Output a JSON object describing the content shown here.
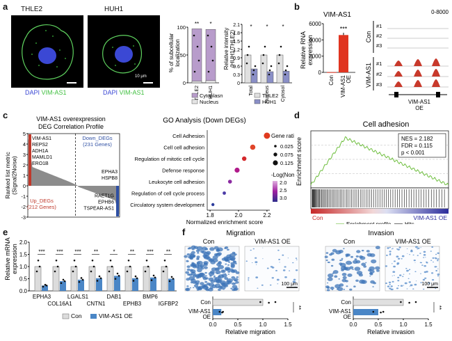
{
  "panels": {
    "a": "a",
    "b": "b",
    "c": "c",
    "d": "d",
    "e": "e",
    "f": "f"
  },
  "a": {
    "micro": {
      "thle2": "THLE2",
      "huh1": "HUH1",
      "scale_small": "10 μm",
      "dapi": "DAPI",
      "vim": "VIM-AS1"
    },
    "bar1": {
      "ylabel": "% of subcellular\nlocalization",
      "yticks": [
        "0",
        "50",
        "100"
      ],
      "groups": [
        "THLE2",
        "HUH1"
      ],
      "cytoplasm": [
        97,
        96
      ],
      "nucleus": [
        3,
        4
      ],
      "sig": [
        "**",
        "*"
      ],
      "legend": [
        "Cytoplasm",
        "Nucleus"
      ],
      "colors": {
        "cytoplasm": "#b89ccb",
        "nucleus": "#e4e4e4"
      }
    },
    "bar2": {
      "ylabel": "Relative intensity\n(HUH1/THLE2)",
      "yticks": [
        "0",
        "0.3",
        "0.6",
        "0.9",
        "1.2",
        "1.5",
        "1.8",
        "2.1"
      ],
      "categories": [
        "Total",
        "Nucleus",
        "Cytosol"
      ],
      "thle2": [
        1.0,
        1.0,
        1.0
      ],
      "huh1": [
        0.5,
        0.4,
        0.42
      ],
      "sig": [
        "*",
        "*",
        "*"
      ],
      "legend": [
        "THLE2",
        "HUH1"
      ],
      "colors": {
        "thle2": "#e0e0e0",
        "huh1": "#8a8fc7"
      }
    }
  },
  "b": {
    "title": "VIM-AS1",
    "ylabel": "Relative RNA\nexpression",
    "yticks": [
      "0",
      "2000",
      "4000",
      "6000"
    ],
    "categories": [
      "Con",
      "VIM-AS1\nOE"
    ],
    "values": [
      30,
      4600
    ],
    "sig": "***",
    "color": "#e03420",
    "tracks": {
      "range": "0-8000",
      "con_label": "Con",
      "oe_label": "VIM-AS1",
      "reps": [
        "#1",
        "#2",
        "#3"
      ],
      "gene": "VIM-AS1",
      "oe_suffix": "OE"
    }
  },
  "c": {
    "title1": "VIM-AS1 overexpression",
    "title2": "DEG Correlation Profile",
    "ylabel": "Ranked list metric\n(Signal2Noise)",
    "yticks": [
      "5",
      "4",
      "3",
      "2",
      "1",
      "0",
      "-1",
      "-2",
      "-3"
    ],
    "up_genes": [
      "VIM-AS1",
      "REPS2",
      "ADH1A",
      "MAMLD1",
      "ERO1B"
    ],
    "down_label": "Down_DEGs\n(231 Genes)",
    "down_genes": [
      "EPHA3",
      "HSPB8"
    ],
    "up_label": "Up_DEGs\n(212 Genes)",
    "down_low_genes": [
      "RAET1G",
      "EPHB6",
      "TSPEAR-AS1"
    ],
    "go": {
      "title": "GO Analysis (Down DEGs)",
      "xlabel": "Normalized enrichment score",
      "xticks": [
        "1.8",
        "2.0",
        "2.2"
      ],
      "terms": [
        "Cell Adhesion",
        "Cell cell adhesion",
        "Regulation of mitotic cell cycle",
        "Defense response",
        "Leukocyte cell adhesion",
        "Regulation of cell cycle process",
        "Circulatory system development"
      ],
      "nes": [
        2.2,
        2.1,
        2.04,
        1.99,
        1.94,
        1.9,
        1.82
      ],
      "size_title": "Gene ratio",
      "sizes": [
        "0.025",
        "0.075",
        "0.125"
      ],
      "color_title": "-Log(Nom.p)",
      "color_ticks": [
        "2.0",
        "2.5",
        "3.0"
      ]
    }
  },
  "d": {
    "title": "Cell adhesion",
    "ylabel": "Enrichment score",
    "stats": [
      "NES = 2.182",
      "FDR = 0.115",
      "p < 0.001"
    ],
    "left": "Con",
    "right": "VIM-AS1 OE",
    "legend": [
      "Enrichment profile",
      "Hits"
    ]
  },
  "e": {
    "ylabel": "Relative mRNA\nexpression",
    "yticks": [
      "0.0",
      "0.5",
      "1.0",
      "1.5",
      "2.0"
    ],
    "genes_top": [
      "EPHA3",
      "LGALS1",
      "DAB1",
      "BMP6"
    ],
    "genes_bottom": [
      "COL16A1",
      "CNTN1",
      "EPHB3",
      "IGFBP2"
    ],
    "genes": [
      "EPHA3",
      "COL16A1",
      "LGALS1",
      "CNTN1",
      "DAB1",
      "EPHB3",
      "BMP6",
      "IGFBP2"
    ],
    "con": [
      1.0,
      1.0,
      1.0,
      1.0,
      1.0,
      1.0,
      1.0,
      1.0
    ],
    "oe": [
      0.22,
      0.4,
      0.46,
      0.52,
      0.62,
      0.52,
      0.55,
      0.5
    ],
    "sig": [
      "***",
      "***",
      "***",
      "**",
      "*",
      "**",
      "***",
      "**"
    ],
    "legend": [
      "Con",
      "VIM-AS1 OE"
    ],
    "colors": {
      "con": "#dcdcdc",
      "oe": "#4a86c6"
    }
  },
  "f": {
    "migration": {
      "title": "Migration",
      "con": "Con",
      "oe": "VIM-AS1 OE",
      "scale": "100 μm",
      "xlabel": "Relative migration",
      "xticks": [
        "0.0",
        "0.5",
        "1.0",
        "1.5"
      ],
      "values": [
        1.0,
        0.17
      ],
      "sig": "**",
      "labels": [
        "Con",
        "VIM-AS1\nOE"
      ]
    },
    "invasion": {
      "title": "Invasion",
      "con": "Con",
      "oe": "VIM-AS1 OE",
      "scale": "100 μm",
      "xlabel": "Relative invasion",
      "xticks": [
        "0.0",
        "0.5",
        "1.0",
        "1.5"
      ],
      "values": [
        1.0,
        0.5
      ],
      "sig": "**",
      "labels": [
        "Con",
        "VIM-AS1\nOE"
      ]
    }
  }
}
